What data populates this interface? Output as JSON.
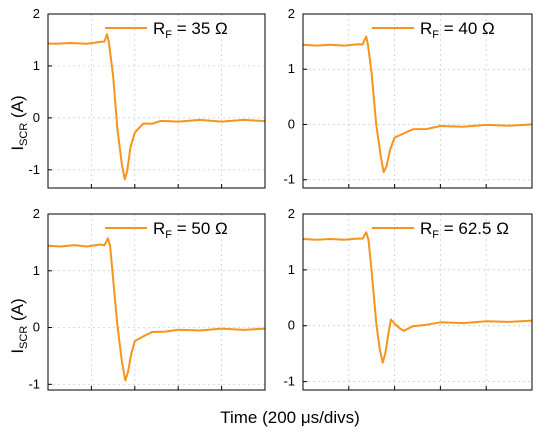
{
  "figure": {
    "xlabel": "Time (200 μs/divs)",
    "ylabel_main": "I",
    "ylabel_sub": "SCR",
    "ylabel_unit": " (A)",
    "trace_color": "#f7941d"
  },
  "chart_data": [
    {
      "type": "line",
      "legend": {
        "prefix": "R",
        "sub": "F",
        "value": " = 35 Ω"
      },
      "ylim": [
        -1.35,
        2.0
      ],
      "yticks": [
        "-1",
        "0",
        "1",
        "2"
      ],
      "xdivs": 5,
      "series": [
        {
          "x": [
            0,
            0.2,
            0.5,
            0.9,
            1.2,
            1.3,
            1.36,
            1.4,
            1.5,
            1.6,
            1.7,
            1.77,
            1.82,
            1.9,
            2.0,
            2.1,
            2.2,
            2.4,
            2.6,
            3.0,
            3.5,
            4.0,
            4.5,
            5.0
          ],
          "y": [
            1.42,
            1.44,
            1.43,
            1.44,
            1.45,
            1.48,
            1.6,
            1.48,
            0.8,
            -0.2,
            -0.9,
            -1.17,
            -1.05,
            -0.55,
            -0.3,
            -0.18,
            -0.12,
            -0.1,
            -0.07,
            -0.06,
            -0.05,
            -0.06,
            -0.05,
            -0.05
          ]
        }
      ]
    },
    {
      "type": "line",
      "legend": {
        "prefix": "R",
        "sub": "F",
        "value": " = 40 Ω"
      },
      "ylim": [
        -1.15,
        2.0
      ],
      "yticks": [
        "-1",
        "0",
        "1",
        "2"
      ],
      "xdivs": 5,
      "series": [
        {
          "x": [
            0,
            0.3,
            0.6,
            0.9,
            1.2,
            1.3,
            1.38,
            1.42,
            1.5,
            1.6,
            1.7,
            1.76,
            1.82,
            1.9,
            2.0,
            2.2,
            2.4,
            2.7,
            3.0,
            3.5,
            4.0,
            4.5,
            5.0
          ],
          "y": [
            1.43,
            1.44,
            1.43,
            1.44,
            1.44,
            1.46,
            1.58,
            1.45,
            0.9,
            0.0,
            -0.6,
            -0.85,
            -0.78,
            -0.45,
            -0.25,
            -0.15,
            -0.1,
            -0.07,
            -0.04,
            -0.03,
            -0.02,
            -0.01,
            -0.01
          ]
        }
      ]
    },
    {
      "type": "line",
      "legend": {
        "prefix": "R",
        "sub": "F",
        "value": " = 50 Ω"
      },
      "ylim": [
        -1.1,
        2.0
      ],
      "yticks": [
        "-1",
        "0",
        "1",
        "2"
      ],
      "xdivs": 5,
      "series": [
        {
          "x": [
            0,
            0.3,
            0.6,
            0.9,
            1.2,
            1.3,
            1.38,
            1.43,
            1.5,
            1.6,
            1.7,
            1.78,
            1.84,
            1.92,
            2.0,
            2.2,
            2.4,
            2.7,
            3.0,
            3.5,
            4.0,
            4.5,
            5.0
          ],
          "y": [
            1.43,
            1.44,
            1.44,
            1.44,
            1.45,
            1.46,
            1.56,
            1.45,
            0.85,
            0.05,
            -0.6,
            -0.92,
            -0.8,
            -0.45,
            -0.25,
            -0.14,
            -0.09,
            -0.06,
            -0.05,
            -0.04,
            -0.03,
            -0.03,
            -0.03
          ]
        }
      ]
    },
    {
      "type": "line",
      "legend": {
        "prefix": "R",
        "sub": "F",
        "value": " = 62.5 Ω"
      },
      "ylim": [
        -1.15,
        2.0
      ],
      "yticks": [
        "-1",
        "0",
        "1",
        "2"
      ],
      "xdivs": 5,
      "series": [
        {
          "x": [
            0,
            0.3,
            0.6,
            0.9,
            1.2,
            1.3,
            1.38,
            1.43,
            1.5,
            1.6,
            1.68,
            1.74,
            1.8,
            1.86,
            1.92,
            2.0,
            2.1,
            2.2,
            2.4,
            2.7,
            3.0,
            3.5,
            4.0,
            4.5,
            5.0
          ],
          "y": [
            1.54,
            1.55,
            1.54,
            1.55,
            1.55,
            1.57,
            1.66,
            1.55,
            0.95,
            0.05,
            -0.45,
            -0.65,
            -0.5,
            -0.15,
            0.1,
            0.05,
            -0.05,
            -0.08,
            -0.02,
            0.03,
            0.05,
            0.06,
            0.07,
            0.08,
            0.08
          ]
        }
      ]
    }
  ]
}
